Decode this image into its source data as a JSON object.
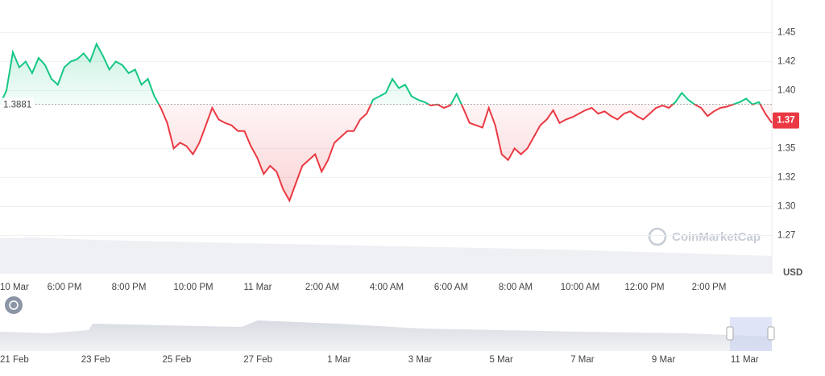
{
  "chart_data": {
    "type": "line",
    "values": [
      1.388,
      1.4,
      1.433,
      1.42,
      1.425,
      1.415,
      1.428,
      1.422,
      1.41,
      1.405,
      1.42,
      1.425,
      1.427,
      1.432,
      1.425,
      1.44,
      1.43,
      1.418,
      1.425,
      1.422,
      1.415,
      1.418,
      1.405,
      1.41,
      1.395,
      1.385,
      1.372,
      1.35,
      1.355,
      1.352,
      1.345,
      1.355,
      1.37,
      1.385,
      1.375,
      1.372,
      1.37,
      1.365,
      1.365,
      1.352,
      1.342,
      1.328,
      1.335,
      1.33,
      1.315,
      1.305,
      1.32,
      1.335,
      1.34,
      1.345,
      1.33,
      1.34,
      1.355,
      1.36,
      1.365,
      1.365,
      1.375,
      1.38,
      1.392,
      1.395,
      1.398,
      1.41,
      1.402,
      1.405,
      1.395,
      1.392,
      1.39,
      1.387,
      1.388,
      1.385,
      1.387,
      1.397,
      1.385,
      1.372,
      1.37,
      1.368,
      1.385,
      1.37,
      1.345,
      1.34,
      1.35,
      1.345,
      1.35,
      1.36,
      1.37,
      1.375,
      1.383,
      1.372,
      1.375,
      1.377,
      1.38,
      1.383,
      1.385,
      1.38,
      1.382,
      1.378,
      1.375,
      1.38,
      1.382,
      1.378,
      1.375,
      1.38,
      1.385,
      1.387,
      1.385,
      1.39,
      1.398,
      1.392,
      1.388,
      1.385,
      1.378,
      1.382,
      1.385,
      1.386,
      1.388,
      1.39,
      1.393,
      1.388,
      1.39,
      1.38,
      1.372
    ],
    "baseline": 1.3881,
    "last_price": 1.37,
    "up_color": "#16c784",
    "down_color": "#ea3943",
    "ylim": [
      1.242,
      1.478
    ],
    "yticks": [
      1.45,
      {
        "value": 1.425,
        "label": "1.42"
      },
      {
        "value": 1.4,
        "label": "1.40"
      },
      1.35,
      {
        "value": 1.325,
        "label": "1.32"
      },
      {
        "value": 1.3,
        "label": "1.30"
      },
      {
        "value": 1.275,
        "label": "1.27"
      }
    ],
    "grid": true,
    "unit": "USD",
    "x_labels": [
      "10 Mar",
      "6:00 PM",
      "8:00 PM",
      "10:00 PM",
      "11 Mar",
      "2:00 AM",
      "4:00 AM",
      "6:00 AM",
      "8:00 AM",
      "10:00 AM",
      "12:00 PM",
      "2:00 PM"
    ],
    "navigator_labels": [
      "21 Feb",
      "23 Feb",
      "25 Feb",
      "27 Feb",
      "1 Mar",
      "3 Mar",
      "5 Mar",
      "7 Mar",
      "9 Mar",
      "11 Mar"
    ],
    "watermark": "CoinMarketCap"
  }
}
